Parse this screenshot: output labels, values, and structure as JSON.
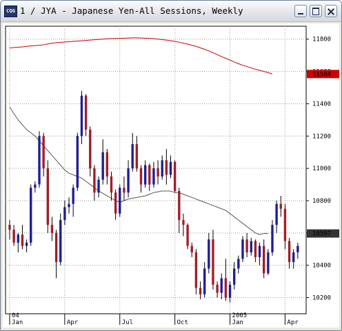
{
  "window": {
    "title": "1 / JYA - Japanese Yen-All Sessions, Weekly",
    "app_icon_text": "CQG",
    "controls": [
      "minimize",
      "maximize",
      "close"
    ]
  },
  "chart_data": {
    "type": "bar",
    "style": "candlestick",
    "up_color": "#1e1e96",
    "down_color": "#a01e28",
    "y_axis": {
      "position": "right",
      "ticks": [
        "10200",
        "10400",
        "10600",
        "10800",
        "11000",
        "11200",
        "11400",
        "11600",
        "11800"
      ],
      "ylim": [
        10100,
        11880
      ]
    },
    "x_axis": {
      "labels": [
        {
          "text": "Jan",
          "week": 0
        },
        {
          "text": "Apr",
          "week": 13
        },
        {
          "text": "Jul",
          "week": 26
        },
        {
          "text": "Oct",
          "week": 39
        },
        {
          "text": "Jan",
          "week": 52
        },
        {
          "text": "Apr",
          "week": 65
        }
      ],
      "year_labels": [
        {
          "text": "04",
          "week": 0
        },
        {
          "text": "2005",
          "week": 52
        }
      ]
    },
    "grid": true,
    "price_labels": [
      {
        "text": "11584",
        "value": 11584,
        "color": "#cc0000"
      },
      {
        "text": "10597",
        "value": 10597,
        "color": "#333333"
      }
    ],
    "candles": [
      [
        10650,
        10680,
        10560,
        10620
      ],
      [
        10620,
        10650,
        10520,
        10540
      ],
      [
        10540,
        10600,
        10480,
        10590
      ],
      [
        10590,
        10650,
        10500,
        10520
      ],
      [
        10520,
        10560,
        10480,
        10540
      ],
      [
        10540,
        10900,
        10520,
        10880
      ],
      [
        10880,
        10920,
        10850,
        10900
      ],
      [
        10900,
        11230,
        10880,
        11200
      ],
      [
        11200,
        11220,
        10950,
        11000
      ],
      [
        11000,
        11050,
        10600,
        10650
      ],
      [
        10650,
        10700,
        10550,
        10600
      ],
      [
        10600,
        10620,
        10320,
        10420
      ],
      [
        10420,
        10720,
        10400,
        10680
      ],
      [
        10680,
        10800,
        10650,
        10760
      ],
      [
        10760,
        10820,
        10720,
        10780
      ],
      [
        10780,
        10900,
        10700,
        10880
      ],
      [
        10880,
        11220,
        10860,
        11200
      ],
      [
        11200,
        11480,
        11150,
        11450
      ],
      [
        11450,
        11460,
        11200,
        11240
      ],
      [
        11240,
        11260,
        10950,
        11000
      ],
      [
        11000,
        11020,
        10800,
        10850
      ],
      [
        10850,
        10950,
        10820,
        10930
      ],
      [
        10930,
        11180,
        10900,
        11100
      ],
      [
        11100,
        11120,
        10900,
        10950
      ],
      [
        10950,
        10980,
        10800,
        10850
      ],
      [
        10850,
        10870,
        10680,
        10720
      ],
      [
        10720,
        10900,
        10700,
        10880
      ],
      [
        10880,
        10950,
        10800,
        10850
      ],
      [
        10850,
        11050,
        10820,
        11000
      ],
      [
        11000,
        11220,
        10980,
        11150
      ],
      [
        11150,
        11200,
        10980,
        11000
      ],
      [
        11000,
        11020,
        10850,
        10900
      ],
      [
        10900,
        11050,
        10880,
        11020
      ],
      [
        11020,
        11030,
        10860,
        10900
      ],
      [
        10900,
        11040,
        10880,
        11000
      ],
      [
        11000,
        11050,
        10900,
        10950
      ],
      [
        10950,
        11080,
        10930,
        11050
      ],
      [
        11050,
        11120,
        10900,
        10960
      ],
      [
        10960,
        11080,
        10940,
        11040
      ],
      [
        11040,
        11050,
        10850,
        10860
      ],
      [
        10860,
        10880,
        10600,
        10680
      ],
      [
        10680,
        10720,
        10580,
        10650
      ],
      [
        10650,
        10660,
        10500,
        10520
      ],
      [
        10520,
        10540,
        10450,
        10480
      ],
      [
        10480,
        10500,
        10220,
        10260
      ],
      [
        10260,
        10300,
        10190,
        10220
      ],
      [
        10220,
        10420,
        10200,
        10380
      ],
      [
        10380,
        10600,
        10350,
        10560
      ],
      [
        10560,
        10620,
        10250,
        10280
      ],
      [
        10280,
        10300,
        10200,
        10230
      ],
      [
        10230,
        10350,
        10190,
        10320
      ],
      [
        10320,
        10440,
        10180,
        10200
      ],
      [
        10200,
        10300,
        10170,
        10280
      ],
      [
        10280,
        10420,
        10250,
        10380
      ],
      [
        10380,
        10460,
        10350,
        10440
      ],
      [
        10440,
        10580,
        10420,
        10560
      ],
      [
        10560,
        10600,
        10450,
        10480
      ],
      [
        10480,
        10570,
        10460,
        10550
      ],
      [
        10550,
        10560,
        10420,
        10450
      ],
      [
        10450,
        10540,
        10400,
        10520
      ],
      [
        10520,
        10560,
        10320,
        10350
      ],
      [
        10350,
        10500,
        10340,
        10480
      ],
      [
        10480,
        10680,
        10460,
        10650
      ],
      [
        10650,
        10800,
        10600,
        10780
      ],
      [
        10780,
        10830,
        10700,
        10750
      ],
      [
        10750,
        10780,
        10500,
        10550
      ],
      [
        10550,
        10570,
        10380,
        10420
      ],
      [
        10420,
        10500,
        10380,
        10480
      ],
      [
        10480,
        10540,
        10440,
        10520
      ]
    ],
    "moving_average_long": {
      "color": "#cc0000",
      "start_week": 0,
      "values": [
        11745,
        11748,
        11750,
        11752,
        11755,
        11758,
        11760,
        11762,
        11765,
        11770,
        11775,
        11778,
        11780,
        11782,
        11784,
        11786,
        11788,
        11790,
        11792,
        11794,
        11796,
        11798,
        11800,
        11802,
        11803,
        11804,
        11805,
        11806,
        11807,
        11808,
        11808,
        11807,
        11806,
        11805,
        11803,
        11800,
        11797,
        11794,
        11790,
        11786,
        11781,
        11775,
        11769,
        11762,
        11755,
        11746,
        11737,
        11727,
        11716,
        11704,
        11692,
        11681,
        11670,
        11659,
        11648,
        11638,
        11630,
        11622,
        11614,
        11607,
        11600,
        11593,
        11584
      ]
    },
    "moving_average_short": {
      "color": "#555555",
      "start_week": 0,
      "values": [
        11380,
        11340,
        11300,
        11270,
        11240,
        11220,
        11200,
        11170,
        11140,
        11110,
        11080,
        11050,
        11020,
        10990,
        10970,
        10960,
        10950,
        10940,
        10920,
        10900,
        10880,
        10860,
        10845,
        10830,
        10815,
        10800,
        10790,
        10800,
        10810,
        10815,
        10820,
        10825,
        10830,
        10840,
        10850,
        10855,
        10860,
        10860,
        10860,
        10850,
        10850,
        10840,
        10830,
        10820,
        10810,
        10800,
        10790,
        10780,
        10770,
        10760,
        10750,
        10740,
        10720,
        10700,
        10680,
        10660,
        10640,
        10620,
        10600,
        10590,
        10597,
        10597
      ]
    }
  }
}
